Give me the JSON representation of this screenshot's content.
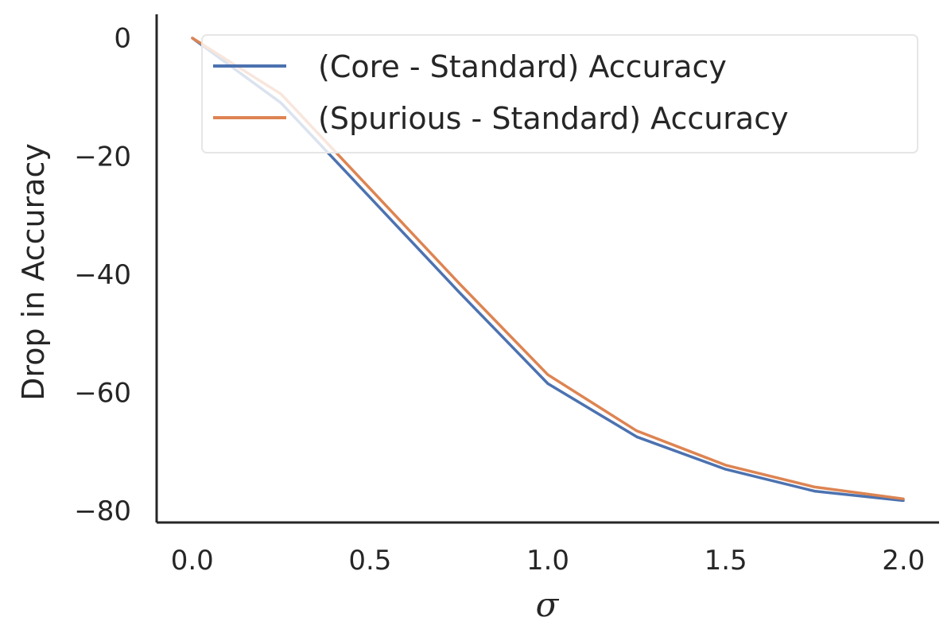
{
  "chart_data": {
    "type": "line",
    "title": "",
    "xlabel": "σ",
    "ylabel": "Drop in Accuracy",
    "xlim": [
      -0.1,
      2.1
    ],
    "ylim": [
      -82,
      4
    ],
    "xticks": [
      0.0,
      0.5,
      1.0,
      1.5,
      2.0
    ],
    "xtick_labels": [
      "0.0",
      "0.5",
      "1.0",
      "1.5",
      "2.0"
    ],
    "yticks": [
      0,
      -20,
      -40,
      -60,
      -80
    ],
    "ytick_labels": [
      "0",
      "−20",
      "−40",
      "−60",
      "−80"
    ],
    "grid": false,
    "legend_position": "top-right",
    "x": [
      0.0,
      0.25,
      0.5,
      0.75,
      1.0,
      1.25,
      1.5,
      1.75,
      2.0
    ],
    "series": [
      {
        "name": "(Core - Standard) Accuracy",
        "color": "#4c72b0",
        "values": [
          0,
          -11,
          -27,
          -43,
          -58.5,
          -67.5,
          -73,
          -76.7,
          -78.3
        ]
      },
      {
        "name": "(Spurious - Standard) Accuracy",
        "color": "#dd8452",
        "values": [
          0,
          -9.5,
          -25.5,
          -41.5,
          -57,
          -66.5,
          -72.3,
          -76,
          -78
        ]
      }
    ]
  }
}
